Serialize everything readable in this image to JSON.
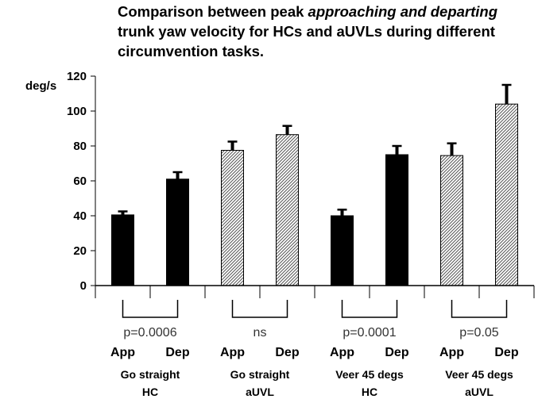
{
  "title": {
    "part1": "Comparison between peak ",
    "italic": "approaching and departing",
    "part2": " trunk yaw velocity for HCs and aUVLs during different circumvention tasks."
  },
  "chart_data": {
    "type": "bar",
    "title": "Comparison between peak approaching and departing trunk yaw velocity for HCs and aUVLs during different circumvention tasks.",
    "ylabel": "deg/s",
    "ylim": [
      0,
      120
    ],
    "yticks": [
      0,
      20,
      40,
      60,
      80,
      100,
      120
    ],
    "bars": [
      {
        "label": "App",
        "group": 0,
        "value": 40.5,
        "error": 2,
        "fill": "solid"
      },
      {
        "label": "Dep",
        "group": 0,
        "value": 61,
        "error": 4,
        "fill": "solid"
      },
      {
        "label": "App",
        "group": 1,
        "value": 77.5,
        "error": 5,
        "fill": "hatched"
      },
      {
        "label": "Dep",
        "group": 1,
        "value": 86.5,
        "error": 5,
        "fill": "hatched"
      },
      {
        "label": "App",
        "group": 2,
        "value": 40,
        "error": 3.5,
        "fill": "solid"
      },
      {
        "label": "Dep",
        "group": 2,
        "value": 75,
        "error": 5,
        "fill": "solid"
      },
      {
        "label": "App",
        "group": 3,
        "value": 74.5,
        "error": 7,
        "fill": "hatched"
      },
      {
        "label": "Dep",
        "group": 3,
        "value": 104,
        "error": 11,
        "fill": "hatched"
      }
    ],
    "groups": [
      {
        "line1": "Go straight",
        "line2": "HC",
        "pvalue": "p=0.0006"
      },
      {
        "line1": "Go straight",
        "line2": "aUVL",
        "pvalue": "ns"
      },
      {
        "line1": "Veer 45 degs",
        "line2": "HC",
        "pvalue": "p=0.0001"
      },
      {
        "line1": "Veer 45 degs",
        "line2": "aUVL",
        "pvalue": "p=0.05"
      }
    ]
  }
}
